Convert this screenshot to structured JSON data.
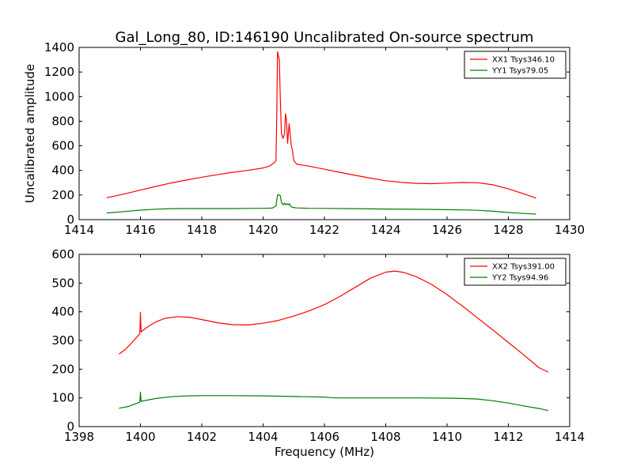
{
  "figure": {
    "title": "Gal_Long_80, ID:146190 Uncalibrated On-source spectrum",
    "ylabel": "Uncalibrated amplitude",
    "xlabel": "Frequency (MHz)"
  },
  "chart_data": [
    {
      "type": "line",
      "title": "Gal_Long_80, ID:146190 Uncalibrated On-source spectrum",
      "xlabel": "",
      "ylabel": "Uncalibrated amplitude",
      "xlim": [
        1414,
        1430
      ],
      "ylim": [
        0,
        1400
      ],
      "xticks": [
        1414,
        1416,
        1418,
        1420,
        1422,
        1424,
        1426,
        1428,
        1430
      ],
      "yticks": [
        0,
        200,
        400,
        600,
        800,
        1000,
        1200,
        1400
      ],
      "legend_position": "top-right",
      "series": [
        {
          "name": "XX1 Tsys346.10",
          "color": "#ff0000",
          "points": [
            [
              1414.9,
              178
            ],
            [
              1415.5,
              210
            ],
            [
              1416,
              240
            ],
            [
              1416.5,
              270
            ],
            [
              1417,
              298
            ],
            [
              1417.5,
              322
            ],
            [
              1418,
              345
            ],
            [
              1418.5,
              365
            ],
            [
              1419,
              385
            ],
            [
              1419.5,
              400
            ],
            [
              1420,
              420
            ],
            [
              1420.2,
              435
            ],
            [
              1420.35,
              460
            ],
            [
              1420.42,
              480
            ],
            [
              1420.45,
              900
            ],
            [
              1420.47,
              1365
            ],
            [
              1420.5,
              1330
            ],
            [
              1420.53,
              1300
            ],
            [
              1420.56,
              1000
            ],
            [
              1420.6,
              700
            ],
            [
              1420.65,
              660
            ],
            [
              1420.7,
              700
            ],
            [
              1420.73,
              860
            ],
            [
              1420.76,
              820
            ],
            [
              1420.8,
              620
            ],
            [
              1420.85,
              780
            ],
            [
              1420.88,
              700
            ],
            [
              1420.92,
              600
            ],
            [
              1420.96,
              560
            ],
            [
              1421.0,
              480
            ],
            [
              1421.1,
              450
            ],
            [
              1421.5,
              435
            ],
            [
              1422,
              410
            ],
            [
              1422.5,
              385
            ],
            [
              1423,
              360
            ],
            [
              1423.5,
              337
            ],
            [
              1424,
              316
            ],
            [
              1424.5,
              303
            ],
            [
              1425,
              295
            ],
            [
              1425.5,
              292
            ],
            [
              1426,
              297
            ],
            [
              1426.5,
              302
            ],
            [
              1427,
              300
            ],
            [
              1427.5,
              283
            ],
            [
              1428,
              250
            ],
            [
              1428.5,
              210
            ],
            [
              1428.9,
              175
            ]
          ]
        },
        {
          "name": "YY1 Tsys79.05",
          "color": "#008000",
          "points": [
            [
              1414.9,
              54
            ],
            [
              1415.5,
              66
            ],
            [
              1416,
              77
            ],
            [
              1416.5,
              85
            ],
            [
              1417,
              89
            ],
            [
              1417.5,
              90
            ],
            [
              1418,
              90
            ],
            [
              1418.5,
              90
            ],
            [
              1419,
              90
            ],
            [
              1419.5,
              91
            ],
            [
              1420,
              92
            ],
            [
              1420.3,
              94
            ],
            [
              1420.42,
              110
            ],
            [
              1420.45,
              165
            ],
            [
              1420.48,
              205
            ],
            [
              1420.52,
              200
            ],
            [
              1420.56,
              195
            ],
            [
              1420.6,
              140
            ],
            [
              1420.65,
              120
            ],
            [
              1420.7,
              135
            ],
            [
              1420.74,
              120
            ],
            [
              1420.78,
              130
            ],
            [
              1420.82,
              120
            ],
            [
              1420.86,
              130
            ],
            [
              1420.9,
              110
            ],
            [
              1420.95,
              100
            ],
            [
              1421.1,
              95
            ],
            [
              1421.5,
              92
            ],
            [
              1422,
              91
            ],
            [
              1423,
              89
            ],
            [
              1424,
              86
            ],
            [
              1425,
              84
            ],
            [
              1426,
              81
            ],
            [
              1426.5,
              79
            ],
            [
              1427,
              76
            ],
            [
              1427.5,
              68
            ],
            [
              1428,
              58
            ],
            [
              1428.5,
              50
            ],
            [
              1428.9,
              45
            ]
          ]
        }
      ]
    },
    {
      "type": "line",
      "title": "",
      "xlabel": "Frequency (MHz)",
      "ylabel": "",
      "xlim": [
        1398,
        1414
      ],
      "ylim": [
        0,
        600
      ],
      "xticks": [
        1398,
        1400,
        1402,
        1404,
        1406,
        1408,
        1410,
        1412,
        1414
      ],
      "yticks": [
        0,
        100,
        200,
        300,
        400,
        500,
        600
      ],
      "legend_position": "top-right",
      "series": [
        {
          "name": "XX2 Tsys391.00",
          "color": "#ff0000",
          "points": [
            [
              1399.3,
              253
            ],
            [
              1399.5,
              268
            ],
            [
              1399.7,
              290
            ],
            [
              1399.95,
              320
            ],
            [
              1399.98,
              325
            ],
            [
              1400.0,
              398
            ],
            [
              1400.02,
              330
            ],
            [
              1400.2,
              345
            ],
            [
              1400.5,
              365
            ],
            [
              1400.8,
              377
            ],
            [
              1401.2,
              383
            ],
            [
              1401.6,
              381
            ],
            [
              1402,
              373
            ],
            [
              1402.5,
              362
            ],
            [
              1403,
              355
            ],
            [
              1403.5,
              354
            ],
            [
              1404,
              360
            ],
            [
              1404.5,
              370
            ],
            [
              1405,
              385
            ],
            [
              1405.5,
              403
            ],
            [
              1406,
              425
            ],
            [
              1406.5,
              453
            ],
            [
              1407,
              485
            ],
            [
              1407.5,
              517
            ],
            [
              1408,
              538
            ],
            [
              1408.3,
              542
            ],
            [
              1408.6,
              537
            ],
            [
              1409,
              522
            ],
            [
              1409.5,
              495
            ],
            [
              1410,
              460
            ],
            [
              1410.5,
              420
            ],
            [
              1411,
              378
            ],
            [
              1411.5,
              336
            ],
            [
              1412,
              293
            ],
            [
              1412.5,
              250
            ],
            [
              1413,
              205
            ],
            [
              1413.3,
              190
            ]
          ]
        },
        {
          "name": "YY2 Tsys94.96",
          "color": "#008000",
          "points": [
            [
              1399.3,
              64
            ],
            [
              1399.6,
              70
            ],
            [
              1399.98,
              85
            ],
            [
              1400.0,
              120
            ],
            [
              1400.02,
              88
            ],
            [
              1400.5,
              98
            ],
            [
              1401,
              104
            ],
            [
              1401.5,
              107
            ],
            [
              1402,
              108
            ],
            [
              1403,
              108
            ],
            [
              1404,
              107
            ],
            [
              1405,
              105
            ],
            [
              1406,
              103
            ],
            [
              1406.2,
              101
            ],
            [
              1406.4,
              100
            ],
            [
              1407,
              100
            ],
            [
              1408,
              100
            ],
            [
              1409,
              100
            ],
            [
              1410,
              99
            ],
            [
              1410.5,
              98
            ],
            [
              1411,
              96
            ],
            [
              1411.5,
              90
            ],
            [
              1412,
              82
            ],
            [
              1412.5,
              72
            ],
            [
              1413,
              63
            ],
            [
              1413.3,
              56
            ]
          ]
        }
      ]
    }
  ]
}
